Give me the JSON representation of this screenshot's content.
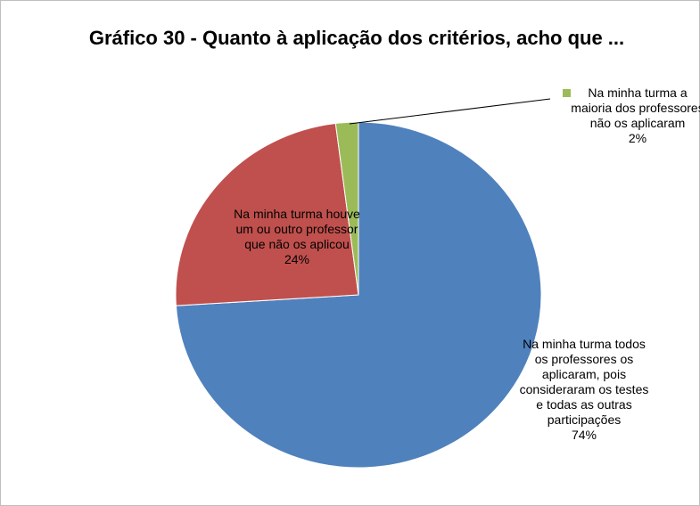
{
  "chart_data": {
    "type": "pie",
    "title": "Gráfico 30 - Quanto à aplicação dos critérios, acho que ...",
    "categories": [
      "Na minha turma todos os professores os aplicaram, pois consideraram os testes e todas as outras participações",
      "Na minha turma houve um ou outro professor que não os aplicou",
      "Na minha turma a maioria dos professores não os aplicaram"
    ],
    "values": [
      74,
      24,
      2
    ],
    "value_labels": [
      "74%",
      "24%",
      "2%"
    ],
    "colors": [
      "#4f81bd",
      "#c0504d",
      "#9bbb59"
    ]
  }
}
